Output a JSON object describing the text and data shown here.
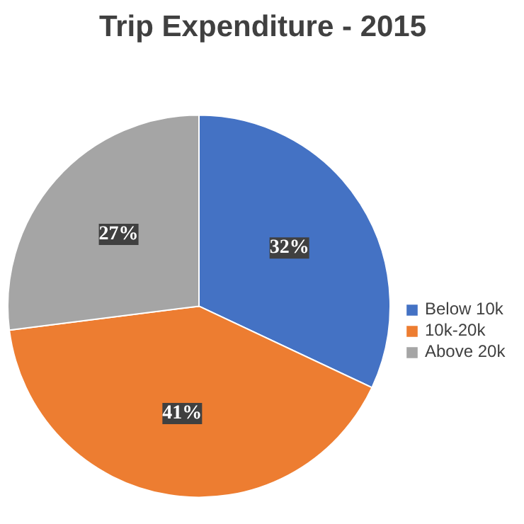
{
  "chart_data": {
    "type": "pie",
    "title": "Trip Expenditure - 2015",
    "categories": [
      "Below 10k",
      "10k-20k",
      "Above 20k"
    ],
    "values": [
      32,
      41,
      27
    ],
    "colors": [
      "#4472c4",
      "#ed7d31",
      "#a5a5a5"
    ],
    "value_labels": [
      "32%",
      "41%",
      "27%"
    ],
    "legend": "right"
  }
}
